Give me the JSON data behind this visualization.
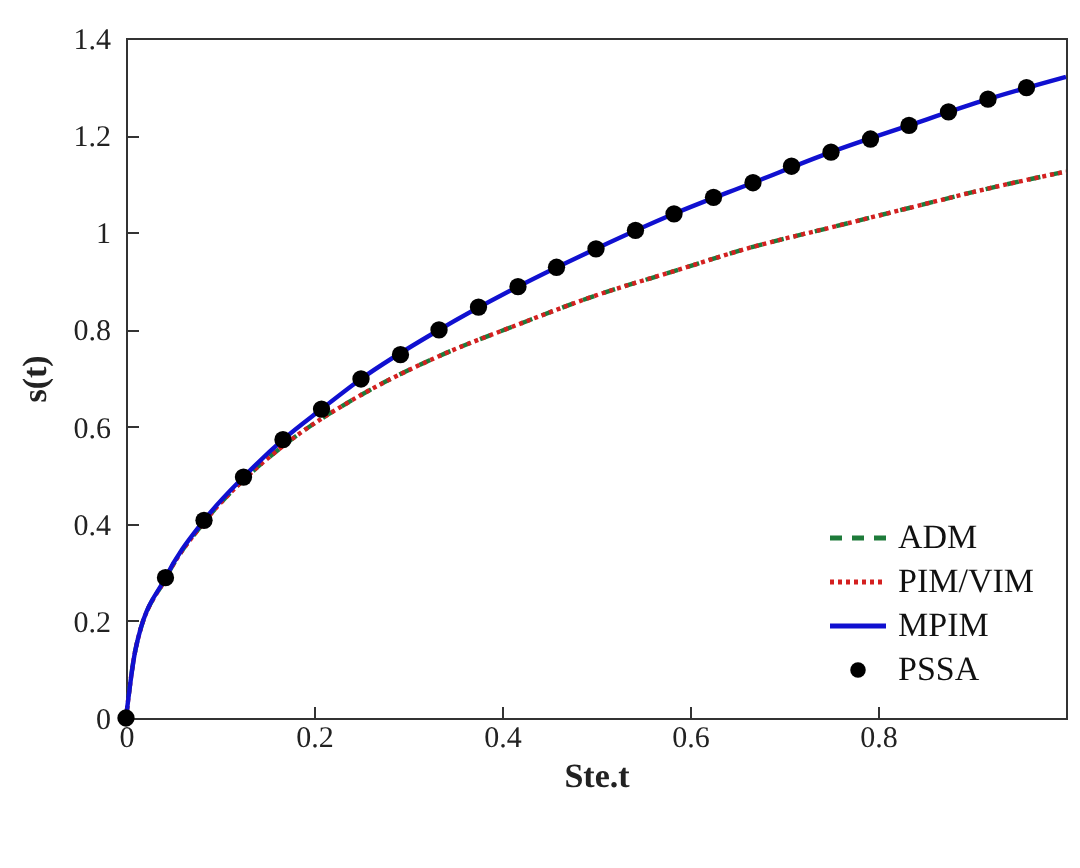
{
  "chart_data": {
    "type": "line",
    "xlabel": "Ste.t",
    "ylabel": "s(t)",
    "xlim": [
      0,
      1
    ],
    "ylim": [
      0,
      1.4
    ],
    "xticks": [
      0,
      0.2,
      0.4,
      0.6,
      0.8
    ],
    "yticks": [
      0,
      0.2,
      0.4,
      0.6,
      0.8,
      1,
      1.2,
      1.4
    ],
    "grid": false,
    "legend": "bottom right",
    "series": [
      {
        "name": "ADM",
        "color": "#1e7b3a",
        "line_style": "dashed",
        "x": [
          0,
          0.01,
          0.042,
          0.083,
          0.125,
          0.167,
          0.25,
          0.333,
          0.417,
          0.5,
          0.583,
          0.667,
          0.75,
          0.833,
          0.917,
          1
        ],
        "values": [
          0,
          0.14,
          0.287,
          0.403,
          0.49,
          0.56,
          0.665,
          0.745,
          0.81,
          0.87,
          0.92,
          0.97,
          1.01,
          1.05,
          1.09,
          1.125
        ]
      },
      {
        "name": "PIM/VIM",
        "color": "#d42020",
        "line_style": "dotted",
        "x": [
          0,
          0.01,
          0.042,
          0.083,
          0.125,
          0.167,
          0.25,
          0.333,
          0.417,
          0.5,
          0.583,
          0.667,
          0.75,
          0.833,
          0.917,
          1
        ],
        "values": [
          0,
          0.14,
          0.287,
          0.403,
          0.49,
          0.56,
          0.665,
          0.745,
          0.81,
          0.87,
          0.92,
          0.97,
          1.01,
          1.05,
          1.09,
          1.125
        ]
      },
      {
        "name": "MPIM",
        "color": "#1010d0",
        "line_style": "solid",
        "x": [
          0,
          0.01,
          0.042,
          0.083,
          0.125,
          0.167,
          0.208,
          0.25,
          0.333,
          0.417,
          0.5,
          0.583,
          0.667,
          0.75,
          0.833,
          0.917,
          1
        ],
        "values": [
          0,
          0.14,
          0.289,
          0.407,
          0.496,
          0.573,
          0.636,
          0.698,
          0.799,
          0.888,
          0.966,
          1.038,
          1.102,
          1.165,
          1.22,
          1.274,
          1.32
        ]
      },
      {
        "name": "PSSA",
        "type": "scatter",
        "color": "#000000",
        "marker": "circle",
        "x": [
          0,
          0.042,
          0.083,
          0.125,
          0.167,
          0.208,
          0.25,
          0.292,
          0.333,
          0.375,
          0.417,
          0.458,
          0.5,
          0.542,
          0.583,
          0.625,
          0.667,
          0.708,
          0.75,
          0.792,
          0.833,
          0.875,
          0.917,
          0.958
        ],
        "values": [
          0,
          0.289,
          0.407,
          0.496,
          0.573,
          0.636,
          0.698,
          0.748,
          0.799,
          0.846,
          0.888,
          0.928,
          0.966,
          1.004,
          1.038,
          1.072,
          1.102,
          1.136,
          1.165,
          1.192,
          1.22,
          1.248,
          1.274,
          1.298
        ]
      }
    ]
  }
}
